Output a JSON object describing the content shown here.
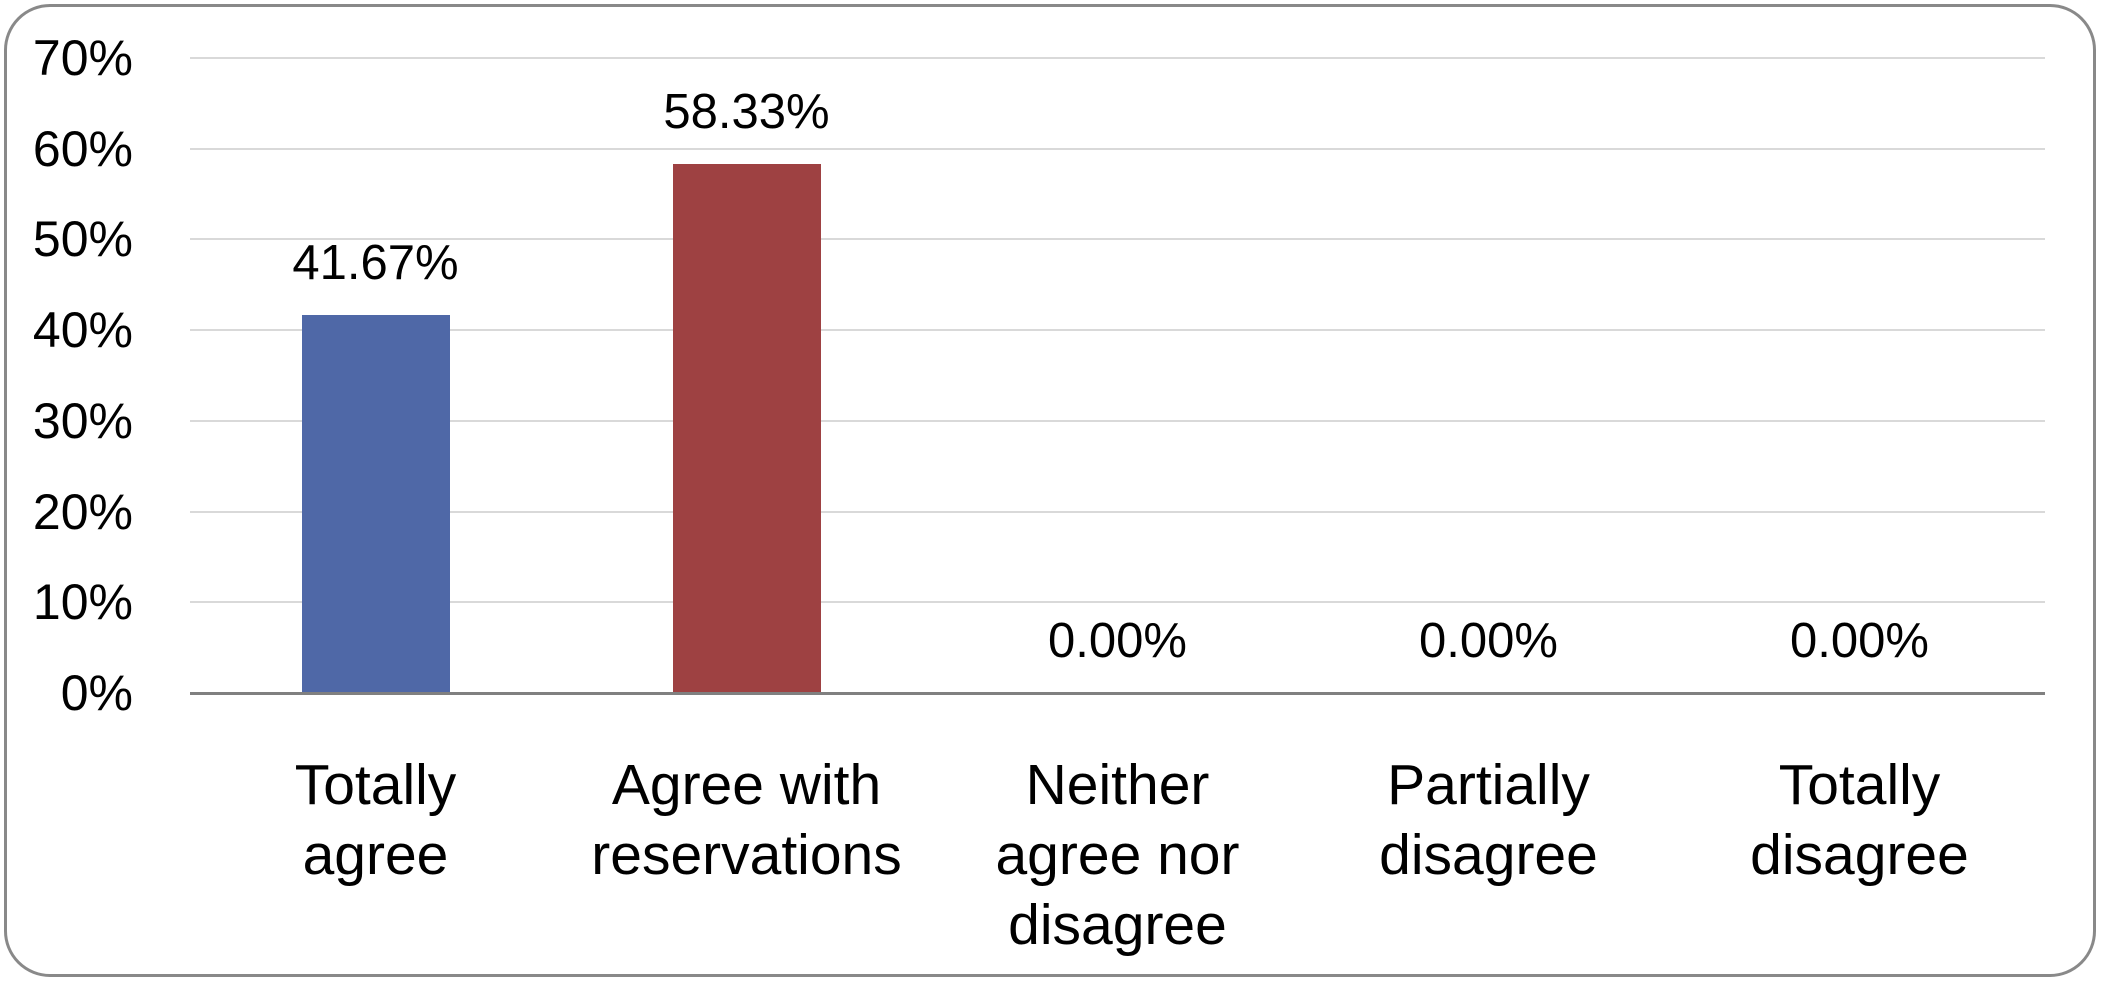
{
  "figure": {
    "background_color": "#ffffff",
    "border_color": "#898989"
  },
  "chart_data": {
    "type": "bar",
    "title": "",
    "xlabel": "",
    "ylabel": "",
    "categories": [
      "Totally agree",
      "Agree with reservations",
      "Neither agree nor disagree",
      "Partially disagree",
      "Totally disagree"
    ],
    "category_lines": [
      [
        "Totally",
        "agree"
      ],
      [
        "Agree with",
        "reservations"
      ],
      [
        "Neither",
        "agree nor",
        "disagree"
      ],
      [
        "Partially",
        "disagree"
      ],
      [
        "Totally",
        "disagree"
      ]
    ],
    "values": [
      41.67,
      58.33,
      0,
      0,
      0
    ],
    "value_labels": [
      "41.67%",
      "58.33%",
      "0.00%",
      "0.00%",
      "0.00%"
    ],
    "bar_colors": [
      "#4F68A7",
      "#9E4142",
      null,
      null,
      null
    ],
    "ylim": [
      0,
      70
    ],
    "ytick_step": 10,
    "ytick_labels": [
      "0%",
      "10%",
      "20%",
      "30%",
      "40%",
      "50%",
      "60%",
      "70%"
    ],
    "grid": true,
    "legend": false,
    "gridline_color": "#d9d9d9",
    "axis_line_color": "#808080",
    "text_color": "#000000"
  }
}
